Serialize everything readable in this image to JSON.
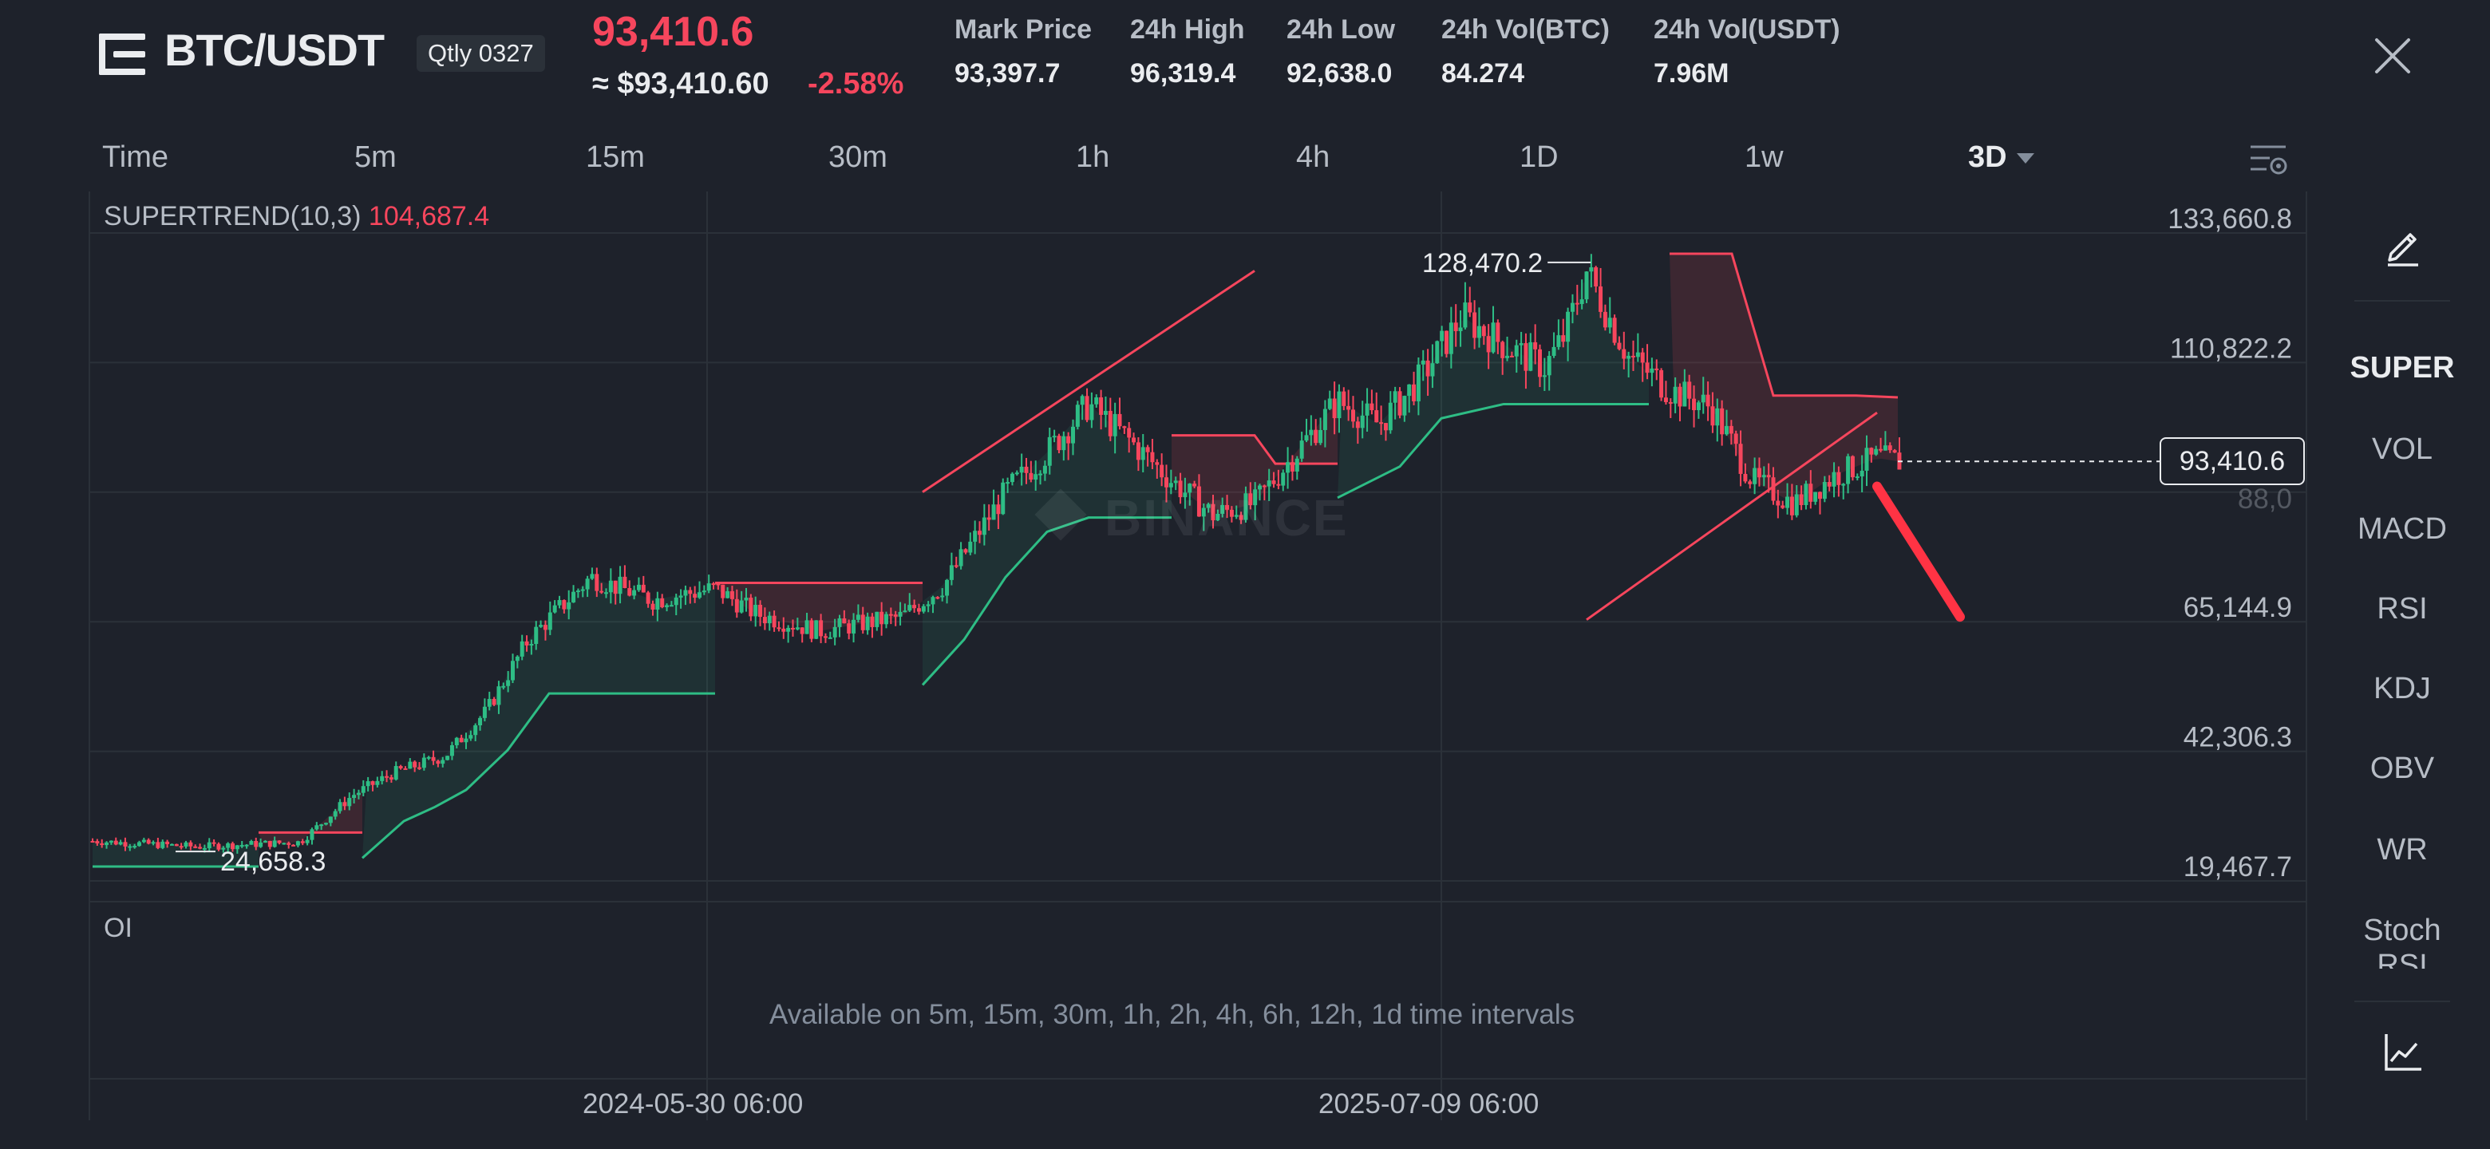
{
  "header": {
    "pair": "BTC/USDT",
    "contract_badge": "Qtly 0327",
    "last_price": "93,410.6",
    "approx_price": "≈ $93,410.60",
    "change_pct": "-2.58%",
    "stats": [
      {
        "label": "Mark Price",
        "value": "93,397.7"
      },
      {
        "label": "24h High",
        "value": "96,319.4"
      },
      {
        "label": "24h Low",
        "value": "92,638.0"
      },
      {
        "label": "24h Vol(BTC)",
        "value": "84.274"
      },
      {
        "label": "24h Vol(USDT)",
        "value": "7.96M"
      }
    ]
  },
  "intervals": [
    {
      "label": "Time"
    },
    {
      "label": "5m"
    },
    {
      "label": "15m"
    },
    {
      "label": "30m"
    },
    {
      "label": "1h"
    },
    {
      "label": "4h"
    },
    {
      "label": "1D"
    },
    {
      "label": "1w"
    },
    {
      "label": "3D",
      "active": true
    }
  ],
  "indicator": {
    "name": "SUPERTREND(10,3)",
    "value": "104,687.4"
  },
  "price_axis": [
    "133,660.8",
    "110,822.2",
    "88,0__",
    "65,144.9",
    "42,306.3",
    "19,467.7"
  ],
  "price_axis_visible": [
    "133,660.8",
    "110,822.2",
    "65,144.9",
    "42,306.3",
    "19,467.7"
  ],
  "current_price_tag": "93,410.6",
  "high_marker": "128,470.2",
  "low_marker": "24,658.3",
  "watermark": "BINANCE",
  "oi": {
    "label": "OI",
    "note": "Available on 5m, 15m, 30m, 1h, 2h, 4h, 6h, 12h, 1d time intervals"
  },
  "date_axis": [
    "2024-05-30 06:00",
    "2025-07-09 06:00"
  ],
  "right_panel": {
    "items": [
      {
        "label": "SUPER",
        "active": true
      },
      {
        "label": "VOL"
      },
      {
        "label": "MACD"
      },
      {
        "label": "RSI"
      },
      {
        "label": "KDJ"
      },
      {
        "label": "OBV"
      },
      {
        "label": "WR"
      },
      {
        "label": "Stoch RSI"
      }
    ]
  },
  "colors": {
    "background": "#1e222b",
    "up": "#2ebd85",
    "down": "#f6465d",
    "grid": "#2b3139",
    "text_primary": "#eaecef",
    "text_secondary": "#b7bdc6"
  },
  "chart_data": {
    "type": "candlestick",
    "title": "",
    "y_range": [
      19467.7,
      133660.8
    ],
    "x_ticks": [
      "2024-05-30 06:00",
      "2025-07-09 06:00"
    ],
    "series": [
      {
        "indicator": "SUPERTREND(10,3)",
        "current_value": 104687.4
      }
    ],
    "price_trend_knots": [
      [
        0,
        26500
      ],
      [
        50,
        25500
      ],
      [
        100,
        26300
      ],
      [
        125,
        34500
      ],
      [
        145,
        38500
      ],
      [
        170,
        41500
      ],
      [
        190,
        49500
      ],
      [
        210,
        62000
      ],
      [
        240,
        73000
      ],
      [
        270,
        69000
      ],
      [
        300,
        71000
      ],
      [
        320,
        66500
      ],
      [
        350,
        63500
      ],
      [
        390,
        66000
      ],
      [
        410,
        71500
      ],
      [
        440,
        88000
      ],
      [
        460,
        95000
      ],
      [
        480,
        103500
      ],
      [
        500,
        97000
      ],
      [
        520,
        90000
      ],
      [
        540,
        84000
      ],
      [
        560,
        86000
      ],
      [
        580,
        95000
      ],
      [
        600,
        104000
      ],
      [
        620,
        100000
      ],
      [
        640,
        108000
      ],
      [
        660,
        119000
      ],
      [
        680,
        114000
      ],
      [
        700,
        110000
      ],
      [
        710,
        116000
      ],
      [
        720,
        127000
      ],
      [
        740,
        112000
      ],
      [
        760,
        106000
      ],
      [
        780,
        103000
      ],
      [
        800,
        90000
      ],
      [
        820,
        86000
      ],
      [
        840,
        91000
      ],
      [
        860,
        94000
      ],
      [
        870,
        93410.6
      ]
    ],
    "supertrend_segments": [
      {
        "trend": "up",
        "points": [
          [
            0,
            22000
          ],
          [
            40,
            22000
          ],
          [
            80,
            22000
          ]
        ]
      },
      {
        "trend": "down",
        "points": [
          [
            80,
            28000
          ],
          [
            130,
            28000
          ]
        ]
      },
      {
        "trend": "up",
        "points": [
          [
            130,
            23500
          ],
          [
            150,
            30000
          ],
          [
            165,
            32500
          ],
          [
            180,
            35500
          ],
          [
            200,
            42500
          ],
          [
            220,
            52500
          ],
          [
            300,
            52500
          ]
        ]
      },
      {
        "trend": "down",
        "points": [
          [
            300,
            72000
          ],
          [
            400,
            72000
          ]
        ]
      },
      {
        "trend": "up",
        "points": [
          [
            400,
            54000
          ],
          [
            420,
            62000
          ],
          [
            440,
            73000
          ],
          [
            460,
            81000
          ],
          [
            480,
            83500
          ],
          [
            520,
            83500
          ]
        ]
      },
      {
        "trend": "down",
        "points": [
          [
            520,
            98000
          ],
          [
            560,
            98000
          ],
          [
            570,
            93000
          ],
          [
            600,
            93000
          ]
        ]
      },
      {
        "trend": "up",
        "points": [
          [
            600,
            87000
          ],
          [
            630,
            92500
          ],
          [
            650,
            101000
          ],
          [
            680,
            103500
          ],
          [
            750,
            103500
          ]
        ]
      },
      {
        "trend": "down",
        "points": [
          [
            760,
            130000
          ],
          [
            790,
            130000
          ],
          [
            810,
            105000
          ],
          [
            850,
            105000
          ],
          [
            870,
            104687.4
          ]
        ]
      }
    ],
    "annotations": [
      {
        "type": "trendline",
        "from": [
          400,
          88000
        ],
        "to": [
          560,
          127000
        ]
      },
      {
        "type": "trendline",
        "from": [
          720,
          65500
        ],
        "to": [
          860,
          102000
        ]
      },
      {
        "type": "arrow",
        "from": [
          860,
          89000
        ],
        "to": [
          900,
          66000
        ]
      }
    ]
  }
}
